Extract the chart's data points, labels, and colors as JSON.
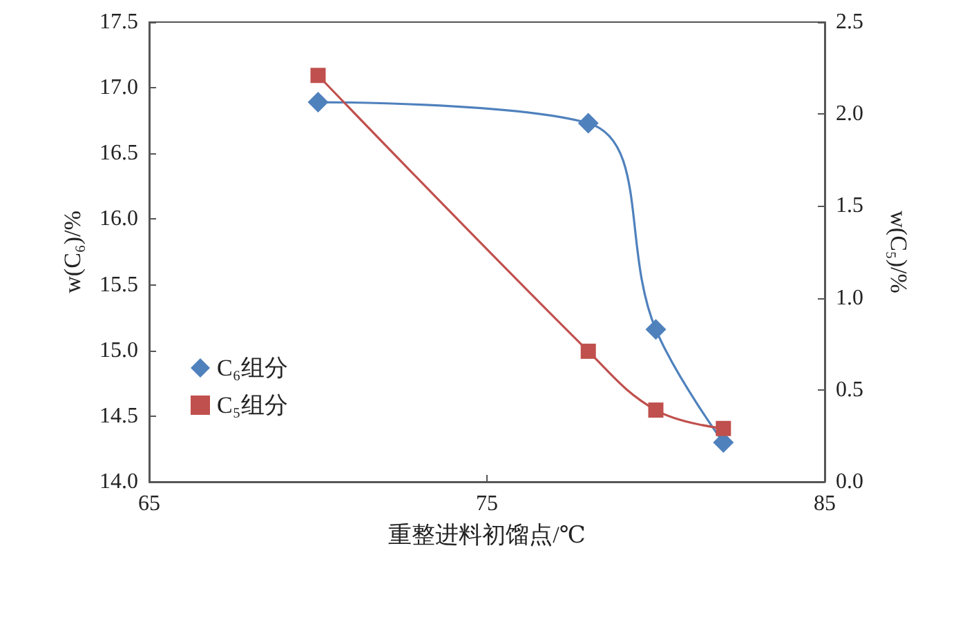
{
  "chart_data": {
    "type": "line",
    "xlabel": "重整进料初馏点/℃",
    "ylabel": "w(C₆)/%",
    "y2label": "w(C₅)/%",
    "xlim": [
      65,
      85
    ],
    "xticks": [
      65,
      75,
      85
    ],
    "ylim": [
      14,
      17.5
    ],
    "yticks": [
      {
        "value": 14,
        "label": "14.0"
      },
      14.5,
      {
        "value": 15,
        "label": "15.0"
      },
      15.5,
      {
        "value": 16,
        "label": "16.0"
      },
      16.5,
      {
        "value": 17,
        "label": "17.0"
      },
      17.5
    ],
    "y2lim": [
      0,
      2.5
    ],
    "y2ticks": [
      {
        "value": 0,
        "label": "0.0"
      },
      0.5,
      {
        "value": 1,
        "label": "1.0"
      },
      1.5,
      {
        "value": 2,
        "label": "2.0"
      },
      2.5
    ],
    "grid": false,
    "legend": "left",
    "line_style": "solid",
    "series": [
      {
        "name": "C₆组分",
        "color": "#4f81bd",
        "marker": "diamond",
        "x": [
          70,
          78,
          80,
          82
        ],
        "values": [
          16.89,
          16.73,
          15.16,
          14.3
        ]
      },
      {
        "name": "C₅组分",
        "color": "#c0504d",
        "marker": "square",
        "axis": "y2",
        "x": [
          70,
          78,
          80,
          82
        ],
        "values": [
          2.21,
          0.71,
          0.39,
          0.29
        ]
      }
    ]
  }
}
